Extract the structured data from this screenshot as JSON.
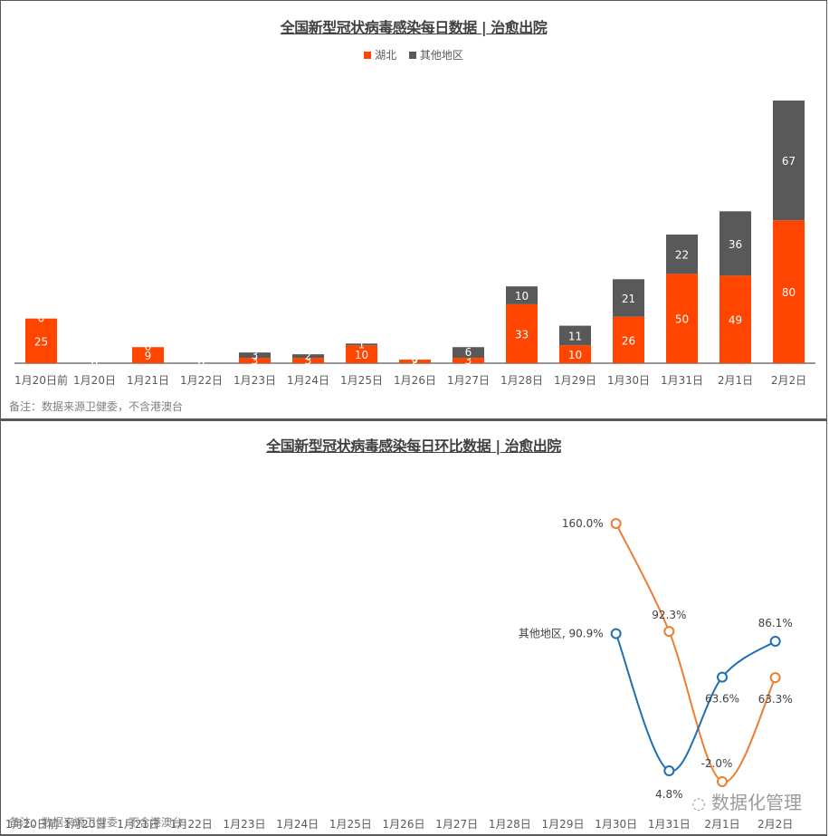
{
  "chart_data": [
    {
      "type": "bar",
      "stacked": true,
      "title": "全国新型冠状病毒感染每日数据 | 治愈出院",
      "categories": [
        "1月20日前",
        "1月20日",
        "1月21日",
        "1月22日",
        "1月23日",
        "1月24日",
        "1月25日",
        "1月26日",
        "1月27日",
        "1月28日",
        "1月29日",
        "1月30日",
        "1月31日",
        "2月1日",
        "2月2日"
      ],
      "series": [
        {
          "name": "湖北",
          "color": "#ff4500",
          "values": [
            25,
            0,
            9,
            0,
            3,
            3,
            10,
            2,
            3,
            33,
            10,
            26,
            50,
            49,
            80
          ]
        },
        {
          "name": "其他地区",
          "color": "#595959",
          "values": [
            0,
            0,
            0,
            0,
            3,
            2,
            1,
            0,
            6,
            10,
            11,
            21,
            22,
            36,
            67
          ]
        }
      ],
      "legend_position": "top",
      "grid": false,
      "note": "备注：数据来源卫健委，不含港澳台"
    },
    {
      "type": "line",
      "title": "全国新型冠状病毒感染每日环比数据 | 治愈出院",
      "categories": [
        "1月20日前",
        "1月20日",
        "1月21日",
        "1月22日",
        "1月23日",
        "1月24日",
        "1月25日",
        "1月26日",
        "1月27日",
        "1月28日",
        "1月29日",
        "1月30日",
        "1月31日",
        "2月1日",
        "2月2日"
      ],
      "series": [
        {
          "name": "湖北",
          "color": "#ed7d31",
          "values": [
            null,
            null,
            null,
            null,
            null,
            null,
            null,
            null,
            null,
            null,
            null,
            160.0,
            92.3,
            -2.0,
            63.3
          ],
          "labels": [
            "160.0%",
            "92.3%",
            "-2.0%",
            "63.3%"
          ]
        },
        {
          "name": "其他地区",
          "color": "#1f6fb2",
          "values": [
            null,
            null,
            null,
            null,
            null,
            null,
            null,
            null,
            null,
            null,
            null,
            90.9,
            4.8,
            63.6,
            86.1
          ],
          "labels": [
            "其他地区, 90.9%",
            "4.8%",
            "63.6%",
            "86.1%"
          ]
        }
      ],
      "unit": "%",
      "grid": false,
      "note": "备注：数据来源卫健委，不含港澳台"
    }
  ],
  "top": {
    "title": "全国新型冠状病毒感染每日数据 | 治愈出院",
    "legend": [
      {
        "label": "湖北",
        "color": "#ff4500"
      },
      {
        "label": "其他地区",
        "color": "#595959"
      }
    ],
    "note": "备注：数据来源卫健委，不含港澳台"
  },
  "bottom": {
    "title": "全国新型冠状病毒感染每日环比数据 | 治愈出院",
    "note": "备注：数据来源卫健委，不含港澳台"
  },
  "watermark": "数据化管理"
}
